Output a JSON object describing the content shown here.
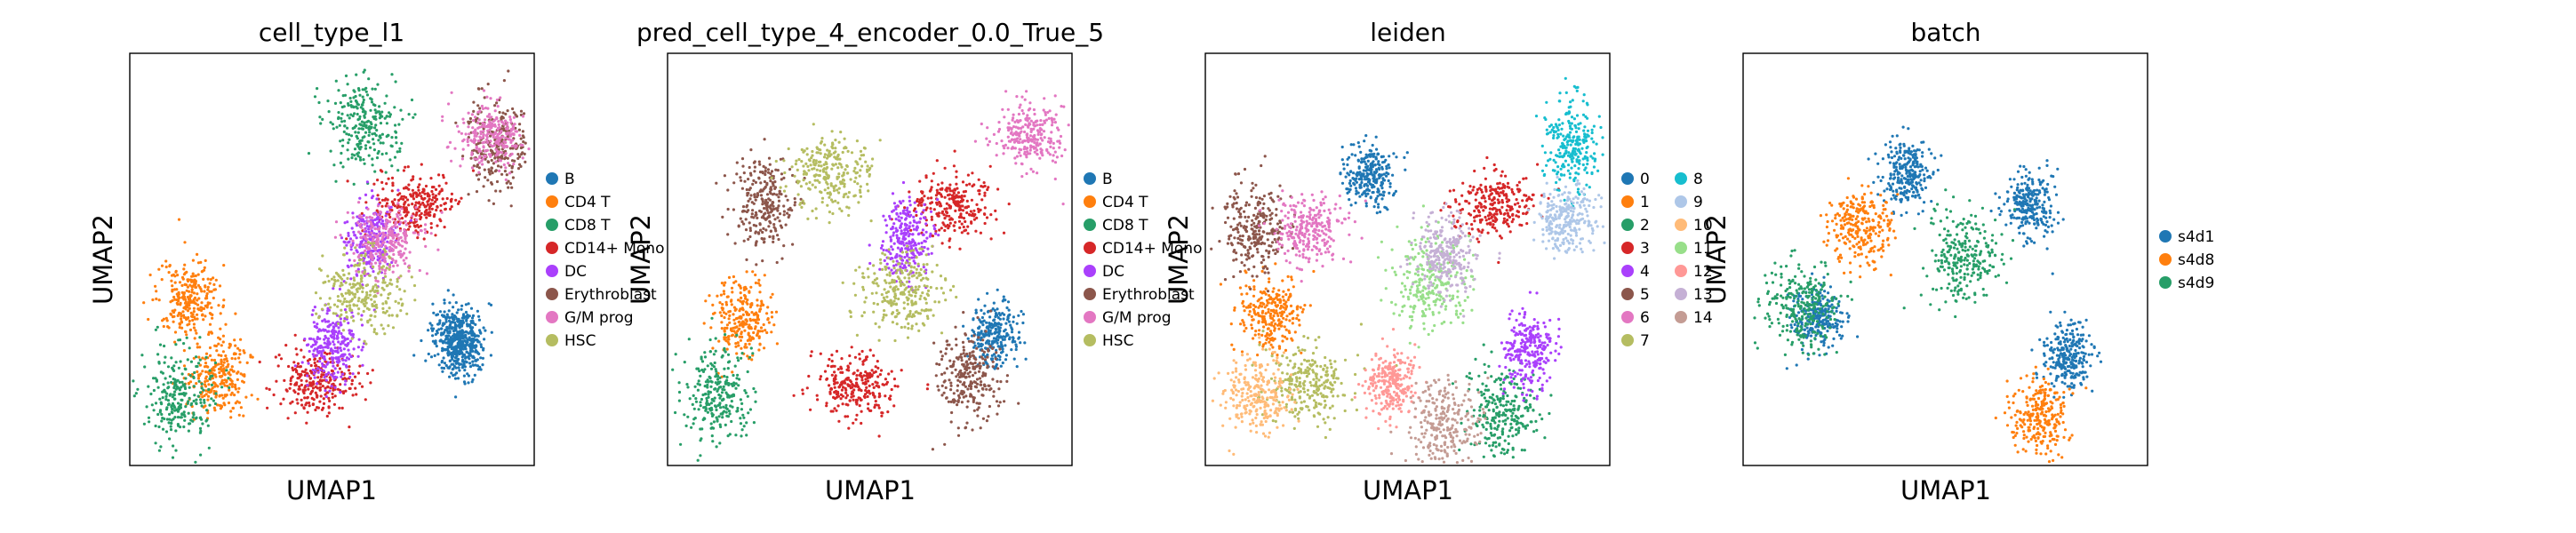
{
  "figure": {
    "panels": [
      {
        "title": "cell_type_l1",
        "xlabel": "UMAP1",
        "ylabel": "UMAP2",
        "legend": [
          {
            "label": "B",
            "color": "#1f77b4"
          },
          {
            "label": "CD4 T",
            "color": "#ff7f0e"
          },
          {
            "label": "CD8 T",
            "color": "#279e68"
          },
          {
            "label": "CD14+ Mono",
            "color": "#d62728"
          },
          {
            "label": "DC",
            "color": "#aa40fc"
          },
          {
            "label": "Erythroblast",
            "color": "#8c564b"
          },
          {
            "label": "G/M prog",
            "color": "#e377c2"
          },
          {
            "label": "HSC",
            "color": "#b5bd61"
          }
        ]
      },
      {
        "title": "pred_cell_type_4_encoder_0.0_True_5",
        "xlabel": "UMAP1",
        "ylabel": "UMAP2",
        "legend": [
          {
            "label": "B",
            "color": "#1f77b4"
          },
          {
            "label": "CD4 T",
            "color": "#ff7f0e"
          },
          {
            "label": "CD8 T",
            "color": "#279e68"
          },
          {
            "label": "CD14+ Mono",
            "color": "#d62728"
          },
          {
            "label": "DC",
            "color": "#aa40fc"
          },
          {
            "label": "Erythroblast",
            "color": "#8c564b"
          },
          {
            "label": "G/M prog",
            "color": "#e377c2"
          },
          {
            "label": "HSC",
            "color": "#b5bd61"
          }
        ]
      },
      {
        "title": "leiden",
        "xlabel": "UMAP1",
        "ylabel": "UMAP2",
        "legend": [
          {
            "label": "0",
            "color": "#1f77b4"
          },
          {
            "label": "1",
            "color": "#ff7f0e"
          },
          {
            "label": "2",
            "color": "#279e68"
          },
          {
            "label": "3",
            "color": "#d62728"
          },
          {
            "label": "4",
            "color": "#aa40fc"
          },
          {
            "label": "5",
            "color": "#8c564b"
          },
          {
            "label": "6",
            "color": "#e377c2"
          },
          {
            "label": "7",
            "color": "#b5bd61"
          },
          {
            "label": "8",
            "color": "#17becf"
          },
          {
            "label": "9",
            "color": "#aec7e8"
          },
          {
            "label": "10",
            "color": "#ffbb78"
          },
          {
            "label": "11",
            "color": "#98df8a"
          },
          {
            "label": "12",
            "color": "#ff9896"
          },
          {
            "label": "13",
            "color": "#c5b0d5"
          },
          {
            "label": "14",
            "color": "#c49c94"
          }
        ]
      },
      {
        "title": "batch",
        "xlabel": "UMAP1",
        "ylabel": "UMAP2",
        "legend": [
          {
            "label": "s4d1",
            "color": "#1f77b4"
          },
          {
            "label": "s4d8",
            "color": "#ff7f0e"
          },
          {
            "label": "s4d9",
            "color": "#279e68"
          }
        ]
      }
    ]
  },
  "chart_data": [
    {
      "type": "scatter",
      "title": "cell_type_l1",
      "xlabel": "UMAP1",
      "ylabel": "UMAP2",
      "series": [
        {
          "name": "B",
          "color": "#1f77b4",
          "x": [
            0.83,
            0.84
          ],
          "y": [
            0.3,
            0.28
          ]
        },
        {
          "name": "CD4 T",
          "color": "#ff7f0e",
          "x": [
            0.12,
            0.2
          ],
          "y": [
            0.4,
            0.2
          ]
        },
        {
          "name": "CD8 T",
          "color": "#279e68",
          "x": [
            0.1,
            0.58
          ],
          "y": [
            0.15,
            0.85
          ]
        },
        {
          "name": "CD14+ Mono",
          "color": "#d62728",
          "x": [
            0.72,
            0.46
          ],
          "y": [
            0.64,
            0.18
          ]
        },
        {
          "name": "DC",
          "color": "#aa40fc",
          "x": [
            0.6,
            0.5
          ],
          "y": [
            0.55,
            0.27
          ]
        },
        {
          "name": "Erythroblast",
          "color": "#8c564b",
          "x": [
            0.94
          ],
          "y": [
            0.8
          ]
        },
        {
          "name": "G/M prog",
          "color": "#e377c2",
          "x": [
            0.64,
            0.92
          ],
          "y": [
            0.55,
            0.82
          ]
        },
        {
          "name": "HSC",
          "color": "#b5bd61",
          "x": [
            0.58
          ],
          "y": [
            0.42
          ]
        }
      ]
    },
    {
      "type": "scatter",
      "title": "pred_cell_type_4_encoder_0.0_True_5",
      "xlabel": "UMAP1",
      "ylabel": "UMAP2",
      "series": [
        {
          "name": "B",
          "color": "#1f77b4",
          "x": [
            0.83
          ],
          "y": [
            0.3
          ]
        },
        {
          "name": "CD4 T",
          "color": "#ff7f0e",
          "x": [
            0.16
          ],
          "y": [
            0.35
          ]
        },
        {
          "name": "CD8 T",
          "color": "#279e68",
          "x": [
            0.1
          ],
          "y": [
            0.15
          ]
        },
        {
          "name": "CD14+ Mono",
          "color": "#d62728",
          "x": [
            0.72,
            0.46
          ],
          "y": [
            0.64,
            0.18
          ]
        },
        {
          "name": "DC",
          "color": "#aa40fc",
          "x": [
            0.6
          ],
          "y": [
            0.55
          ]
        },
        {
          "name": "Erythroblast",
          "color": "#8c564b",
          "x": [
            0.22,
            0.76
          ],
          "y": [
            0.64,
            0.2
          ]
        },
        {
          "name": "G/M prog",
          "color": "#e377c2",
          "x": [
            0.92
          ],
          "y": [
            0.82
          ]
        },
        {
          "name": "HSC",
          "color": "#b5bd61",
          "x": [
            0.58,
            0.4
          ],
          "y": [
            0.42,
            0.72
          ]
        }
      ]
    },
    {
      "type": "scatter",
      "title": "leiden",
      "xlabel": "UMAP1",
      "ylabel": "UMAP2",
      "series": [
        {
          "name": "0",
          "color": "#1f77b4",
          "x": [
            0.4
          ],
          "y": [
            0.72
          ]
        },
        {
          "name": "1",
          "color": "#ff7f0e",
          "x": [
            0.14
          ],
          "y": [
            0.36
          ]
        },
        {
          "name": "2",
          "color": "#279e68",
          "x": [
            0.75
          ],
          "y": [
            0.1
          ]
        },
        {
          "name": "3",
          "color": "#d62728",
          "x": [
            0.72
          ],
          "y": [
            0.64
          ]
        },
        {
          "name": "4",
          "color": "#aa40fc",
          "x": [
            0.82
          ],
          "y": [
            0.26
          ]
        },
        {
          "name": "5",
          "color": "#8c564b",
          "x": [
            0.1
          ],
          "y": [
            0.58
          ]
        },
        {
          "name": "6",
          "color": "#e377c2",
          "x": [
            0.24
          ],
          "y": [
            0.58
          ]
        },
        {
          "name": "7",
          "color": "#b5bd61",
          "x": [
            0.24
          ],
          "y": [
            0.18
          ]
        },
        {
          "name": "8",
          "color": "#17becf",
          "x": [
            0.93
          ],
          "y": [
            0.8
          ]
        },
        {
          "name": "9",
          "color": "#aec7e8",
          "x": [
            0.92
          ],
          "y": [
            0.6
          ]
        },
        {
          "name": "10",
          "color": "#ffbb78",
          "x": [
            0.1
          ],
          "y": [
            0.15
          ]
        },
        {
          "name": "11",
          "color": "#98df8a",
          "x": [
            0.56
          ],
          "y": [
            0.44
          ]
        },
        {
          "name": "12",
          "color": "#ff9896",
          "x": [
            0.46
          ],
          "y": [
            0.18
          ]
        },
        {
          "name": "13",
          "color": "#c5b0d5",
          "x": [
            0.6
          ],
          "y": [
            0.52
          ]
        },
        {
          "name": "14",
          "color": "#c49c94",
          "x": [
            0.6
          ],
          "y": [
            0.07
          ]
        }
      ]
    },
    {
      "type": "scatter",
      "title": "batch",
      "xlabel": "UMAP1",
      "ylabel": "UMAP2",
      "series": [
        {
          "name": "s4d1",
          "color": "#1f77b4",
          "x": [
            0.4,
            0.16,
            0.72,
            0.82
          ],
          "y": [
            0.72,
            0.35,
            0.64,
            0.25
          ]
        },
        {
          "name": "s4d8",
          "color": "#ff7f0e",
          "x": [
            0.28,
            0.75
          ],
          "y": [
            0.58,
            0.1
          ]
        },
        {
          "name": "s4d9",
          "color": "#279e68",
          "x": [
            0.12,
            0.55
          ],
          "y": [
            0.38,
            0.5
          ]
        }
      ]
    }
  ]
}
